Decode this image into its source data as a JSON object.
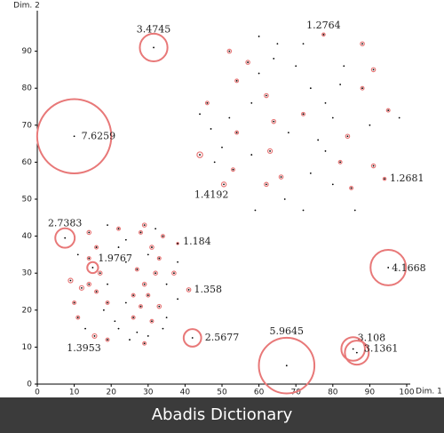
{
  "chart_data": {
    "type": "scatter",
    "xlabel": "Dim. 1",
    "ylabel": "Dim. 2",
    "xlim": [
      0,
      100
    ],
    "ylim": [
      0,
      100
    ],
    "xticks": [
      0,
      10,
      20,
      30,
      40,
      50,
      60,
      70,
      80,
      90,
      100
    ],
    "yticks": [
      0,
      10,
      20,
      30,
      40,
      50,
      60,
      70,
      80,
      90
    ],
    "point_color": "#000000",
    "ring_color": "#e87878",
    "series": [
      {
        "x": [
          60,
          65,
          72,
          88,
          52,
          57,
          64,
          70,
          83,
          91,
          54,
          60,
          74,
          82,
          88,
          46,
          58,
          62,
          78,
          95,
          98,
          44,
          52,
          64,
          72,
          80,
          90,
          47,
          54,
          68,
          76,
          84,
          50,
          58,
          63,
          78,
          44,
          48,
          53,
          66,
          74,
          82,
          91,
          62,
          80,
          85,
          59,
          72,
          86,
          67,
          19,
          22,
          29,
          32,
          14,
          24,
          28,
          34,
          16,
          22,
          31,
          11,
          14,
          24,
          30,
          33,
          38,
          17,
          27,
          32,
          37,
          9,
          14,
          19,
          29,
          35,
          12,
          16,
          26,
          30,
          38,
          10,
          19,
          24,
          28,
          33,
          11,
          21,
          26,
          31,
          35,
          13,
          22,
          27,
          30,
          34,
          19,
          25,
          29,
          18
        ],
        "values": [
          94,
          92,
          92,
          92,
          90,
          87,
          88,
          86,
          86,
          85,
          82,
          84,
          80,
          81,
          80,
          76,
          76,
          78,
          76,
          74,
          72,
          73,
          72,
          71,
          73,
          72,
          70,
          69,
          68,
          68,
          66,
          67,
          64,
          62,
          63,
          63,
          62,
          60,
          58,
          56,
          57,
          60,
          59,
          54,
          54,
          53,
          47,
          47,
          47,
          50,
          43,
          42,
          43,
          42,
          41,
          39,
          41,
          40,
          37,
          37,
          37,
          35,
          34,
          33,
          35,
          34,
          33,
          30,
          31,
          30,
          30,
          28,
          27,
          27,
          27,
          27,
          26,
          25,
          24,
          24,
          23,
          22,
          22,
          22,
          21,
          21,
          18,
          17,
          18,
          17,
          18,
          15,
          15,
          14,
          13,
          15,
          12,
          12,
          11,
          20
        ],
        "scores": [
          1,
          1,
          1,
          1.35,
          1.35,
          1.35,
          1,
          1,
          1,
          1.35,
          1.3,
          1,
          1,
          1,
          1.3,
          1.3,
          1,
          1.35,
          1,
          1.3,
          1,
          1,
          1,
          1.35,
          1.3,
          1,
          1,
          1,
          1.3,
          1,
          1,
          1.35,
          1,
          1,
          1.4,
          1,
          1.5,
          1,
          1.3,
          1.35,
          1,
          1.3,
          1.35,
          1.35,
          1,
          1.3,
          1,
          1,
          1,
          1,
          1,
          1.3,
          1.35,
          1,
          1.35,
          1,
          1.3,
          1.3,
          1.3,
          1,
          1.35,
          1,
          1.3,
          1,
          1,
          1.3,
          1,
          1.35,
          1.3,
          1.35,
          1.35,
          1.4,
          1.35,
          1,
          1.35,
          1,
          1.4,
          1.3,
          1.3,
          1.3,
          1,
          1.3,
          1.3,
          1,
          1.3,
          1.35,
          1.3,
          1,
          1.3,
          1.3,
          1,
          1,
          1,
          1,
          1,
          1,
          1.3,
          1,
          1.3,
          1
        ]
      },
      {
        "x": [
          31.5,
          77.5,
          10,
          50.5,
          94,
          7.5,
          38,
          15,
          95,
          41,
          42,
          15.5,
          67.5,
          85.5,
          86.5
        ],
        "values": [
          91,
          94.5,
          67,
          54,
          55.5,
          39.5,
          38,
          31.5,
          31.5,
          25.5,
          12.5,
          13,
          5,
          9.5,
          8.5
        ],
        "scores": [
          3.4745,
          1.2764,
          7.6259,
          1.4192,
          1.2681,
          2.7383,
          1.184,
          1.9767,
          4.1668,
          1.358,
          2.5677,
          1.3953,
          5.9645,
          3.108,
          3.1361
        ],
        "labeled": true
      }
    ]
  },
  "banner": "Abadis Dictionary"
}
